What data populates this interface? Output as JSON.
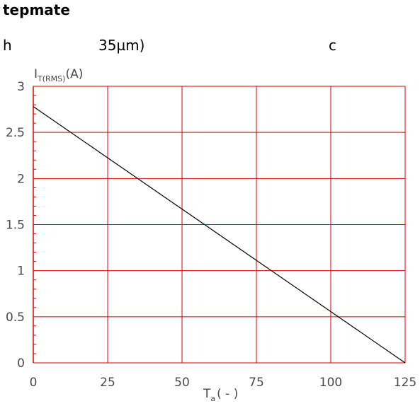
{
  "header": {
    "line1": "tepmate",
    "line2_a": "h",
    "line2_b": "35µm)",
    "line2_c": "c"
  },
  "chart_data": {
    "type": "line",
    "title": "",
    "ylabel": {
      "main": "I",
      "sub": "T(RMS)",
      "unit": "(A)"
    },
    "xlabel": {
      "main": "T",
      "sub": "a",
      "unit": "( - )"
    },
    "xlim": [
      0,
      125
    ],
    "ylim": [
      0,
      3
    ],
    "x_ticks": [
      0,
      25,
      50,
      75,
      100,
      125
    ],
    "x_tick_labels": [
      "0",
      "25",
      "50",
      "75",
      "100",
      "125"
    ],
    "y_ticks": [
      0,
      0.5,
      1,
      1.5,
      2,
      2.5,
      3
    ],
    "y_tick_labels": [
      "0",
      "0.5",
      "1",
      "1.5",
      "2",
      "2.5",
      "3"
    ],
    "grid": true,
    "grid_color": "#e00000",
    "line_color": "#000000",
    "series": [
      {
        "x": [
          0,
          125
        ],
        "y": [
          2.78,
          0
        ]
      }
    ]
  }
}
